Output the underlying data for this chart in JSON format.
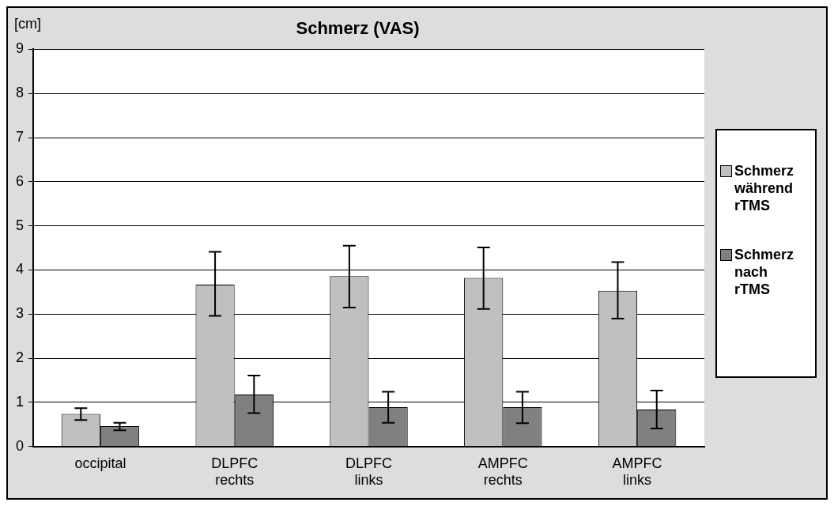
{
  "chart_data": {
    "type": "bar",
    "title": "Schmerz (VAS)",
    "ylabel": "[cm]",
    "categories": [
      "occipital",
      "DLPFC rechts",
      "DLPFC links",
      "AMPFC rechts",
      "AMPFC links"
    ],
    "series": [
      {
        "name": "Schmerz während rTMS",
        "color": "#c0c0c0",
        "values": [
          0.74,
          3.67,
          3.86,
          3.82,
          3.53
        ],
        "errors": [
          [
            0.6,
            0.87
          ],
          [
            2.96,
            4.41
          ],
          [
            3.15,
            4.55
          ],
          [
            3.12,
            4.51
          ],
          [
            2.9,
            4.18
          ]
        ]
      },
      {
        "name": "Schmerz nach rTMS",
        "color": "#808080",
        "values": [
          0.46,
          1.18,
          0.89,
          0.89,
          0.84
        ],
        "errors": [
          [
            0.37,
            0.54
          ],
          [
            0.76,
            1.61
          ],
          [
            0.54,
            1.24
          ],
          [
            0.53,
            1.24
          ],
          [
            0.41,
            1.27
          ]
        ]
      }
    ],
    "ylim": [
      0,
      9
    ],
    "yticks": [
      0,
      1,
      2,
      3,
      4,
      5,
      6,
      7,
      8,
      9
    ],
    "grid": "y",
    "legend": "right"
  }
}
